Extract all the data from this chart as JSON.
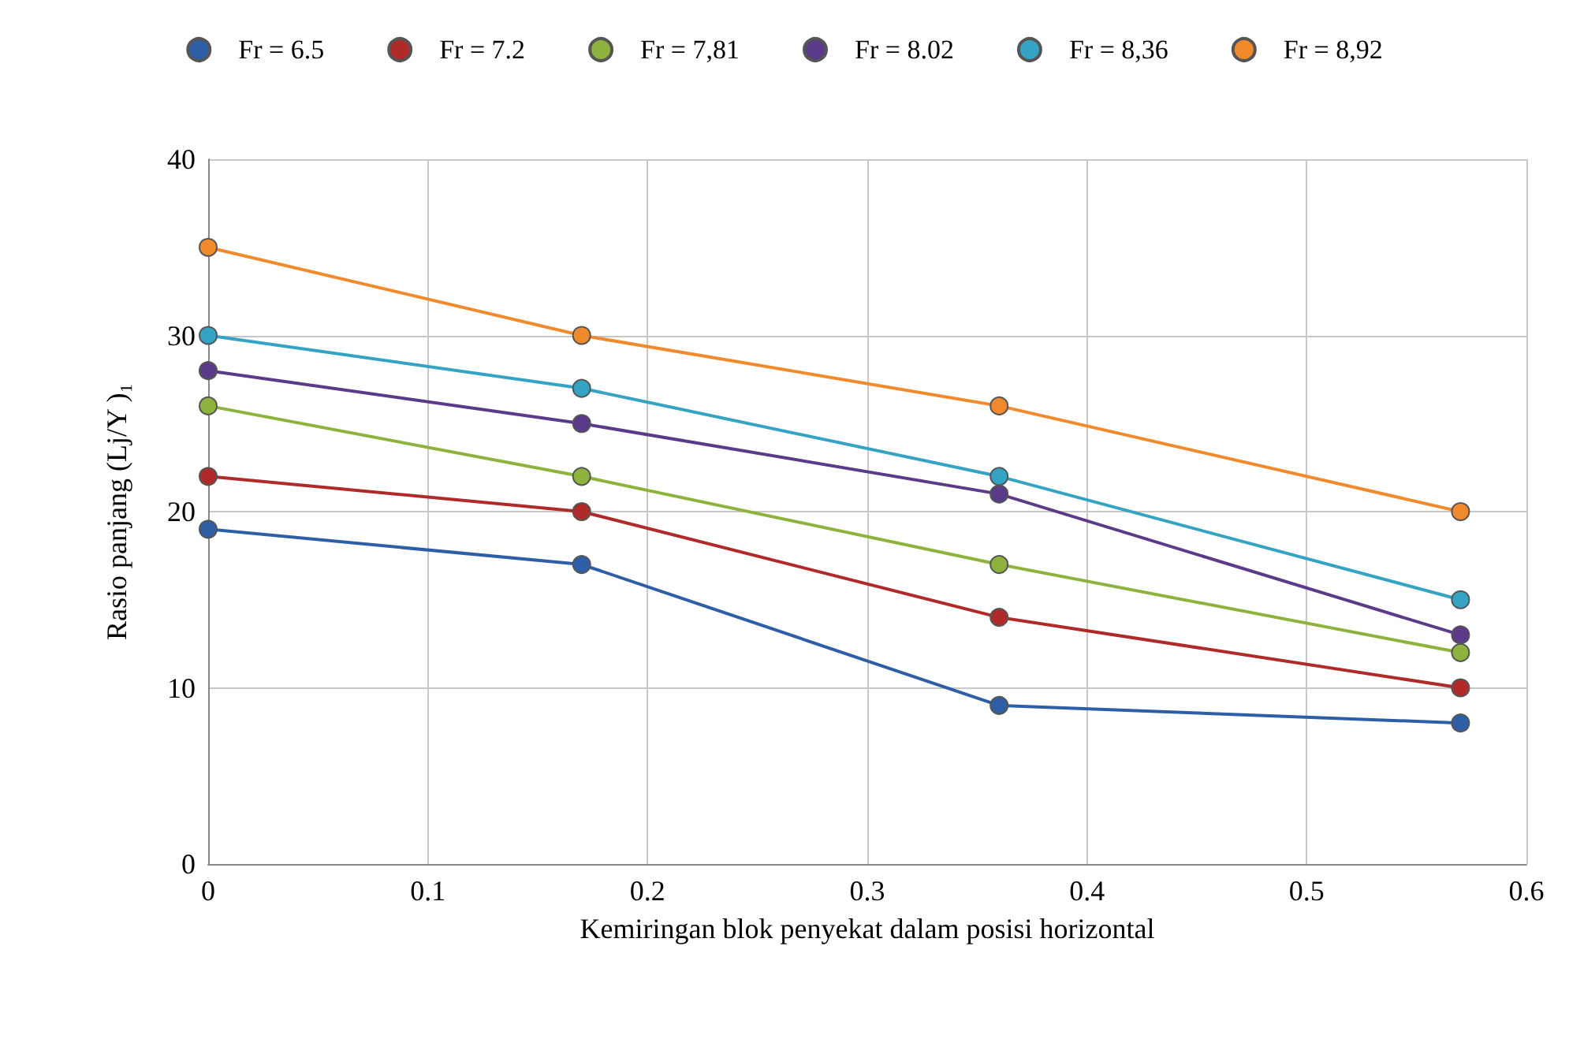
{
  "chart_data": {
    "type": "line",
    "xlabel": "Kemiringan blok penyekat dalam posisi horizontal",
    "ylabel": "Rasio panjang (Lj/Y )₁",
    "x": [
      0,
      0.17,
      0.36,
      0.57
    ],
    "series": [
      {
        "name": "Fr = 6.5",
        "color": "#2e5fa6",
        "values": [
          19,
          17,
          9,
          8
        ]
      },
      {
        "name": "Fr = 7.2",
        "color": "#b02a2a",
        "values": [
          22,
          20,
          14,
          10
        ]
      },
      {
        "name": "Fr = 7,81",
        "color": "#8db33e",
        "values": [
          26,
          22,
          17,
          12
        ]
      },
      {
        "name": "Fr = 8.02",
        "color": "#5b3a8a",
        "values": [
          28,
          25,
          21,
          13
        ]
      },
      {
        "name": "Fr = 8,36",
        "color": "#34a3c4",
        "values": [
          30,
          27,
          22,
          15
        ]
      },
      {
        "name": "Fr = 8,92",
        "color": "#f08a2c",
        "values": [
          35,
          30,
          26,
          20
        ]
      }
    ],
    "xlim": [
      0,
      0.6
    ],
    "xticks": [
      0,
      0.1,
      0.2,
      0.3,
      0.4,
      0.5,
      0.6
    ],
    "ylim": [
      0,
      40
    ],
    "yticks": [
      0,
      10,
      20,
      30,
      40
    ],
    "grid": true,
    "legend": "top",
    "marker": "circle",
    "line_style": "solid"
  }
}
